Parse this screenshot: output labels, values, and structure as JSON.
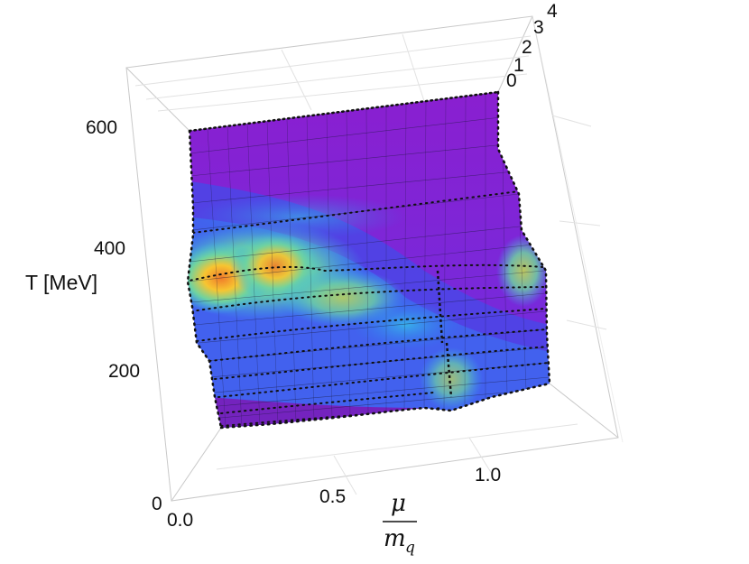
{
  "chart_data": {
    "type": "surface3d",
    "x_axis": {
      "label_numerator": "μ",
      "label_denominator": "m",
      "label_denominator_sub": "q",
      "ticks": [
        "0.0",
        "0.5",
        "1.0"
      ],
      "range": [
        0,
        1.2
      ]
    },
    "y_axis": {
      "label": "T [MeV]",
      "ticks": [
        "200",
        "400",
        "600"
      ],
      "range": [
        100,
        650
      ]
    },
    "z_axis": {
      "ticks": [
        "0",
        "1",
        "2",
        "3",
        "4"
      ],
      "range": [
        0,
        4
      ]
    },
    "grid": true,
    "colormap": [
      "#6a0f9e",
      "#8a1fd0",
      "#4e3be8",
      "#2f7bf0",
      "#37b7e8",
      "#6fd3a0",
      "#c8e04a",
      "#f7c531",
      "#f07a2a"
    ],
    "surface_peaks": [
      {
        "mu": 0.02,
        "T": 330,
        "z": 4.0
      },
      {
        "mu": 0.22,
        "T": 330,
        "z": 3.8
      },
      {
        "mu": 0.35,
        "T": 310,
        "z": 2.8
      },
      {
        "mu": 0.55,
        "T": 280,
        "z": 2.0
      },
      {
        "mu": 0.8,
        "T": 180,
        "z": 1.4
      },
      {
        "mu": 1.15,
        "T": 335,
        "z": 2.2
      }
    ]
  }
}
